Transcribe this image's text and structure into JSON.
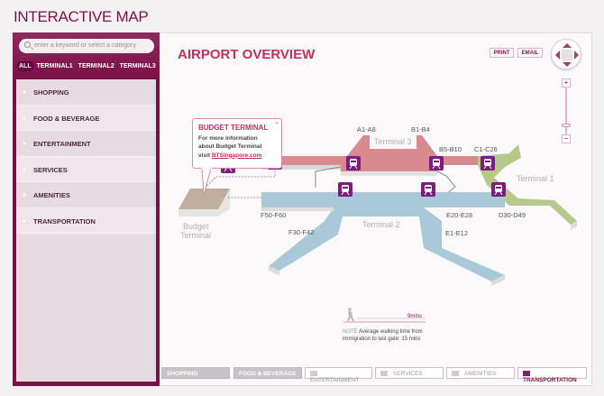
{
  "app_title": "INTERACTIVE MAP",
  "search": {
    "placeholder": "enter a keyword or select a category"
  },
  "terminal_tabs": [
    "ALL",
    "TERMINAL1",
    "TERMINAL2",
    "TERMINAL3"
  ],
  "categories": [
    "SHOPPING",
    "FOOD & BEVERAGE",
    "ENTERTAINMENT",
    "SERVICES",
    "AMENITIES",
    "TRANSPORTATION"
  ],
  "map": {
    "title": "AIRPORT OVERVIEW",
    "print_label": "PRINT",
    "email_label": "EMAIL",
    "zoom_in": "+",
    "zoom_out": "−",
    "gate_labels": [
      "A1-A8",
      "B1-B4",
      "B5-B10",
      "C1-C26",
      "F50-F60",
      "E20-E28",
      "D30-D49",
      "F30-F42",
      "E1-E12"
    ],
    "terminal_labels": [
      "Terminal 3",
      "Terminal 1",
      "Terminal 2",
      "Budget",
      "Terminal"
    ],
    "colors": {
      "terminal1": "#b5c98a",
      "terminal2": "#a9c9d9",
      "terminal3": "#d98a8e",
      "budget": "#bfae9c",
      "train_icon": "#7d1e7c",
      "accent": "#c0315a"
    },
    "popup": {
      "title": "BUDGET TERMINAL",
      "line1": "For more information",
      "line2": "about Budget Terminal",
      "line3": "visit ",
      "link": "BTSingapore.com",
      "close": "×"
    },
    "walking": {
      "time": "9mins",
      "note_prefix": "NOTE",
      "note_line1": "Average walking time from",
      "note_line2": "immigration to last gate: 15 mins"
    }
  },
  "legend": [
    {
      "label": "SHOPPING",
      "state": "on"
    },
    {
      "label": "FOOD & BEVERAGE",
      "state": "on"
    },
    {
      "label": "ENTERTAINMENT",
      "state": "off"
    },
    {
      "label": "SERVICES",
      "state": "off"
    },
    {
      "label": "AMENITIES",
      "state": "off"
    },
    {
      "label": "TRANSPORTATION",
      "state": "selected"
    }
  ]
}
